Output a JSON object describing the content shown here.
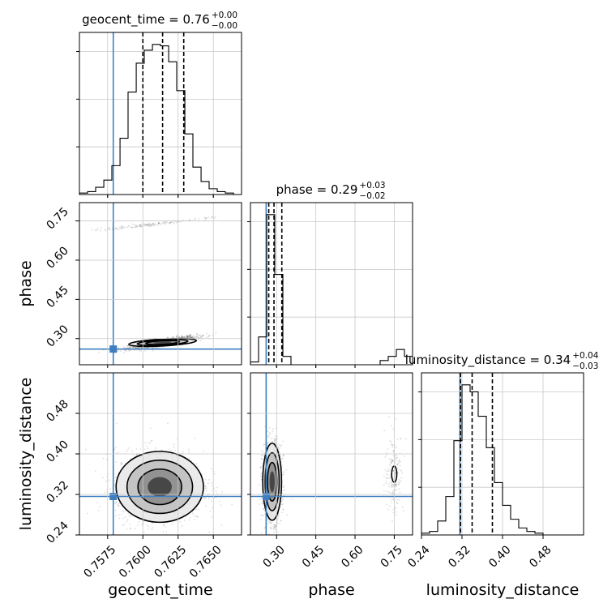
{
  "chart_data": {
    "type": "corner",
    "parameters": [
      "geocent_time",
      "phase",
      "luminosity_distance"
    ],
    "truths": {
      "geocent_time": 0.7579,
      "phase": 0.26,
      "luminosity_distance": 0.316
    },
    "colors": {
      "truth": "#3f7fbf",
      "hist": "#000000",
      "grid": "#c8c8c8",
      "points": "#404040"
    },
    "grid": true,
    "axes": {
      "geocent_time": {
        "label": "geocent_time",
        "range": [
          0.7555,
          0.767
        ],
        "ticks": [
          0.7575,
          0.76,
          0.7625,
          0.765
        ],
        "tick_labels": [
          "0.7575",
          "0.7600",
          "0.7625",
          "0.7650"
        ]
      },
      "phase": {
        "label": "phase",
        "range": [
          0.2,
          0.82
        ],
        "ticks": [
          0.3,
          0.45,
          0.6,
          0.75
        ],
        "tick_labels": [
          "0.30",
          "0.45",
          "0.60",
          "0.75"
        ]
      },
      "luminosity_distance": {
        "label": "luminosity_distance",
        "range": [
          0.24,
          0.56
        ],
        "ticks": [
          0.24,
          0.32,
          0.4,
          0.48
        ],
        "tick_labels": [
          "0.24",
          "0.32",
          "0.40",
          "0.48"
        ]
      }
    },
    "marginals": [
      {
        "param": "geocent_time",
        "title_main": "geocent_time = 0.76",
        "sup": "+0.00",
        "sub": "−0.00",
        "quantiles": [
          0.76,
          0.7614,
          0.7629
        ],
        "bin_edges": [
          0.7555,
          0.75608,
          0.75665,
          0.75723,
          0.7578,
          0.75838,
          0.75895,
          0.75953,
          0.7601,
          0.76068,
          0.76125,
          0.76183,
          0.7624,
          0.76298,
          0.76355,
          0.76413,
          0.7647,
          0.76528,
          0.76585,
          0.76643,
          0.767
        ],
        "counts": [
          1,
          2,
          5,
          10,
          20,
          39,
          71,
          91,
          100,
          104,
          103,
          92,
          72,
          42,
          19,
          9,
          4,
          2,
          1,
          0
        ]
      },
      {
        "param": "phase",
        "title_main": "phase = 0.29",
        "sup": "+0.03",
        "sub": "−0.02",
        "quantiles": [
          0.27,
          0.29,
          0.32
        ],
        "bin_edges": [
          0.2,
          0.231,
          0.262,
          0.293,
          0.324,
          0.355,
          0.386,
          0.417,
          0.448,
          0.479,
          0.51,
          0.541,
          0.572,
          0.603,
          0.634,
          0.665,
          0.696,
          0.727,
          0.758,
          0.789,
          0.82
        ],
        "counts": [
          2,
          20,
          108,
          65,
          6,
          0,
          0,
          0,
          0,
          0,
          0,
          0,
          0,
          0,
          0,
          0,
          3,
          6,
          11,
          6
        ]
      },
      {
        "param": "luminosity_distance",
        "title_main": "luminosity_distance = 0.34",
        "sup": "+0.04",
        "sub": "−0.03",
        "quantiles": [
          0.317,
          0.34,
          0.38
        ],
        "bin_edges": [
          0.24,
          0.256,
          0.272,
          0.288,
          0.304,
          0.32,
          0.336,
          0.352,
          0.368,
          0.384,
          0.4,
          0.416,
          0.432,
          0.448,
          0.464,
          0.48,
          0.496,
          0.512,
          0.528,
          0.544,
          0.56
        ],
        "counts": [
          1,
          2,
          8,
          22,
          54,
          86,
          82,
          68,
          50,
          30,
          17,
          9,
          4,
          2,
          1,
          0,
          0,
          0,
          0,
          0
        ]
      }
    ],
    "joint": [
      {
        "x": "geocent_time",
        "y": "phase",
        "modes": [
          {
            "center": [
              0.7614,
              0.285
            ],
            "spread": [
              0.0012,
              0.012
            ],
            "corr": 0.85,
            "weight": 0.9
          },
          {
            "center": [
              0.7603,
              0.735
            ],
            "spread": [
              0.0022,
              0.013
            ],
            "corr": 0.97,
            "weight": 0.1
          }
        ]
      },
      {
        "x": "geocent_time",
        "y": "luminosity_distance",
        "modes": [
          {
            "center": [
              0.7612,
              0.335
            ],
            "spread": [
              0.00155,
              0.035
            ],
            "corr": 0.0,
            "weight": 1.0
          }
        ]
      },
      {
        "x": "phase",
        "y": "luminosity_distance",
        "modes": [
          {
            "center": [
              0.283,
              0.345
            ],
            "spread": [
              0.018,
              0.038
            ],
            "corr": 0.0,
            "weight": 0.88
          },
          {
            "center": [
              0.75,
              0.36
            ],
            "spread": [
              0.018,
              0.04
            ],
            "corr": 0.0,
            "weight": 0.12
          }
        ]
      }
    ]
  }
}
